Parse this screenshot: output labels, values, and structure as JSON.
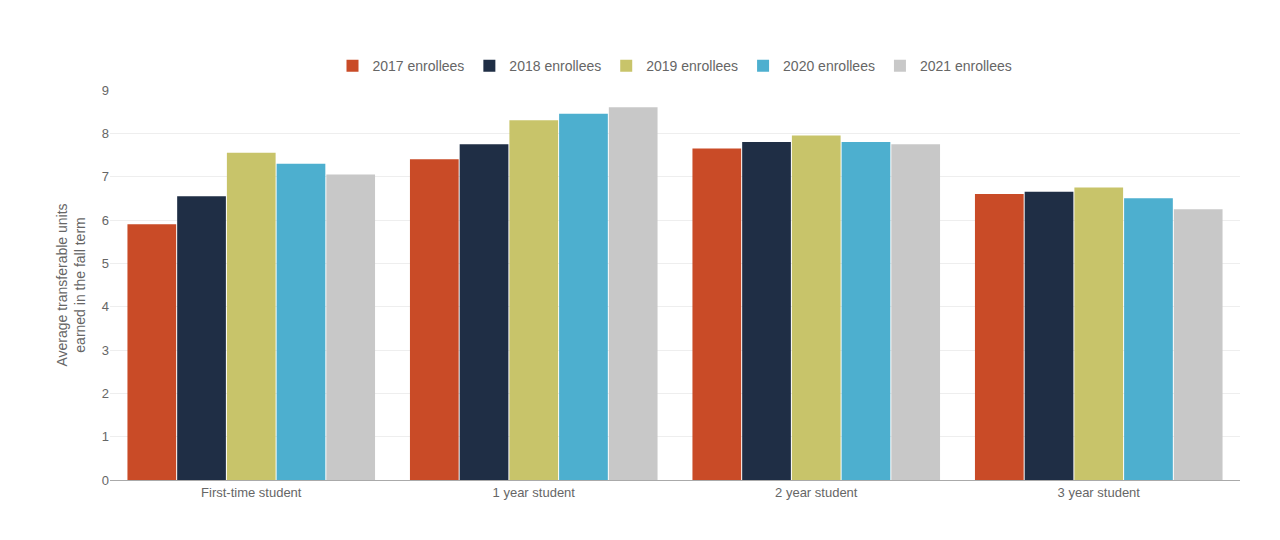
{
  "chart_data": {
    "type": "bar",
    "ylabel": "Average transferable units\nearned in the fall term",
    "categories": [
      "First-time student",
      "1 year student",
      "2 year student",
      "3 year student"
    ],
    "series": [
      {
        "name": "2017 enrollees",
        "color": "#C94B27",
        "values": [
          5.9,
          7.4,
          7.65,
          6.6
        ]
      },
      {
        "name": "2018 enrollees",
        "color": "#1F2E45",
        "values": [
          6.55,
          7.75,
          7.8,
          6.65
        ]
      },
      {
        "name": "2019 enrollees",
        "color": "#C8C46A",
        "values": [
          7.55,
          8.3,
          7.95,
          6.75
        ]
      },
      {
        "name": "2020 enrollees",
        "color": "#4DAFCF",
        "values": [
          7.3,
          8.45,
          7.8,
          6.5
        ]
      },
      {
        "name": "2021 enrollees",
        "color": "#C8C8C8",
        "values": [
          7.05,
          8.6,
          7.75,
          6.25
        ]
      }
    ],
    "ylim": [
      0,
      9
    ],
    "yticks": [
      0,
      1,
      2,
      3,
      4,
      5,
      6,
      7,
      8,
      9
    ],
    "grid": true,
    "legend": "top"
  }
}
